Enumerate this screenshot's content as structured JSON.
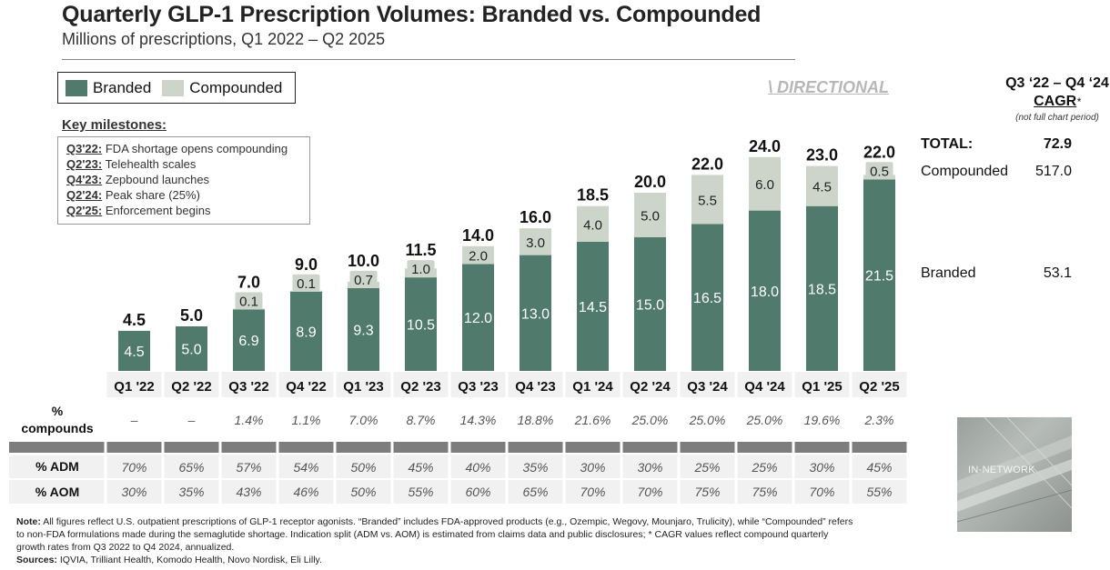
{
  "header": {
    "title": "Quarterly GLP-1 Prescription Volumes: Branded vs. Compounded",
    "subtitle": "Millions of prescriptions, Q1 2022 – Q2 2025"
  },
  "legend": {
    "branded_label": "Branded",
    "compounded_label": "Compounded"
  },
  "directional": "\\ DIRECTIONAL",
  "milestones": {
    "heading": "Key milestones:",
    "items": [
      {
        "quarter": "Q3'22:",
        "text": "FDA shortage opens compounding"
      },
      {
        "quarter": "Q2'23:",
        "text": "Telehealth scales"
      },
      {
        "quarter": "Q4'23:",
        "text": "Zepbound launches"
      },
      {
        "quarter": "Q2'24:",
        "text": "Peak share (25%)"
      },
      {
        "quarter": "Q2'25:",
        "text": "Enforcement begins"
      }
    ]
  },
  "colors": {
    "branded": "#4f7a6c",
    "compounded": "#cdd5cb",
    "table_band": "#f1f1f1",
    "divider": "#7d7d7d"
  },
  "chart_data": {
    "type": "bar",
    "stacked": true,
    "title": "Quarterly GLP-1 Prescription Volumes: Branded vs. Compounded",
    "ylabel": "Millions of prescriptions",
    "categories": [
      "Q1 '22",
      "Q2 '22",
      "Q3 '22",
      "Q4 '22",
      "Q1 '23",
      "Q2 '23",
      "Q3 '23",
      "Q4 '23",
      "Q1 '24",
      "Q2 '24",
      "Q3 '24",
      "Q4 '24",
      "Q1 '25",
      "Q2 '25"
    ],
    "series": [
      {
        "name": "Branded",
        "values": [
          4.5,
          5.0,
          6.9,
          8.9,
          9.3,
          10.5,
          12.0,
          13.0,
          14.5,
          15.0,
          16.5,
          18.0,
          18.5,
          21.5
        ],
        "labels": [
          "4.5",
          "5.0",
          "6.9",
          "8.9",
          "9.3",
          "10.5",
          "12.0",
          "13.0",
          "14.5",
          "15.0",
          "16.5",
          "18.0",
          "18.5",
          "21.5"
        ]
      },
      {
        "name": "Compounded",
        "values": [
          0,
          0,
          0.1,
          0.1,
          0.7,
          1.0,
          2.0,
          3.0,
          4.0,
          5.0,
          5.5,
          6.0,
          4.5,
          0.5
        ],
        "labels": [
          "",
          "",
          "0.1",
          "0.1",
          "0.7",
          "1.0",
          "2.0",
          "3.0",
          "4.0",
          "5.0",
          "5.5",
          "6.0",
          "4.5",
          "0.5"
        ]
      }
    ],
    "totals": [
      4.5,
      5.0,
      7.0,
      9.0,
      10.0,
      11.5,
      14.0,
      16.0,
      18.5,
      20.0,
      22.0,
      24.0,
      23.0,
      22.0
    ],
    "total_labels": [
      "4.5",
      "5.0",
      "7.0",
      "9.0",
      "10.0",
      "11.5",
      "14.0",
      "16.0",
      "18.5",
      "20.0",
      "22.0",
      "24.0",
      "23.0",
      "22.0"
    ],
    "ylim": [
      0,
      26
    ],
    "grid": false,
    "legend": "top-left"
  },
  "table": {
    "compounds_label_line1": "%",
    "compounds_label_line2": "compounds",
    "compounds": [
      "–",
      "–",
      "1.4%",
      "1.1%",
      "7.0%",
      "8.7%",
      "14.3%",
      "18.8%",
      "21.6%",
      "25.0%",
      "25.0%",
      "25.0%",
      "19.6%",
      "2.3%"
    ],
    "adm_label": "% ADM",
    "adm": [
      "70%",
      "65%",
      "57%",
      "54%",
      "50%",
      "45%",
      "40%",
      "35%",
      "30%",
      "30%",
      "25%",
      "25%",
      "30%",
      "45%"
    ],
    "aom_label": "% AOM",
    "aom": [
      "30%",
      "35%",
      "43%",
      "46%",
      "50%",
      "55%",
      "60%",
      "65%",
      "70%",
      "70%",
      "75%",
      "75%",
      "70%",
      "55%"
    ]
  },
  "cagr": {
    "line1": "Q3 ‘22 – Q4 ‘24",
    "line2": "CAGR",
    "star": "*",
    "note": "(not full chart period)",
    "total_label": "TOTAL:",
    "total_value": "72.9",
    "compounded_label": "Compounded",
    "compounded_value": "517.0",
    "branded_label": "Branded",
    "branded_value": "53.1"
  },
  "thumbnail": {
    "label": "IN-NETWORK"
  },
  "notes": {
    "note_label": "Note:",
    "note_text": "All figures reflect U.S. outpatient prescriptions of GLP-1 receptor agonists. “Branded” includes FDA-approved products (e.g., Ozempic, Wegovy, Mounjaro, Trulicity), while “Compounded” refers to non-FDA formulations made during the semaglutide shortage. Indication split (ADM vs. AOM) is estimated from claims data and public disclosures; * CAGR values reflect compound quarterly growth rates from Q3 2022 to Q4 2024, annualized.",
    "sources_label": "Sources:",
    "sources_text": "IQVIA, Trilliant Health, Komodo Health, Novo Nordisk, Eli Lilly."
  }
}
